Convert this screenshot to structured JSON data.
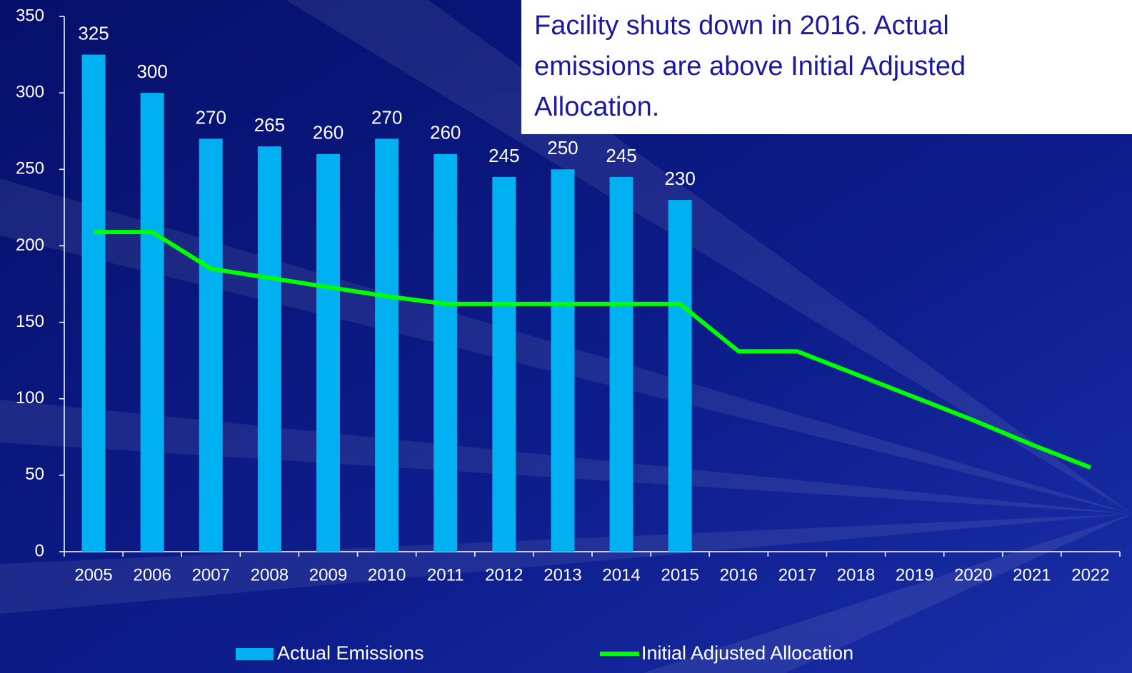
{
  "chart_data": {
    "type": "bar",
    "annotation": [
      "Facility shuts down in 2016.  Actual",
      "emissions are above Initial Adjusted",
      "Allocation."
    ],
    "categories": [
      "2005",
      "2006",
      "2007",
      "2008",
      "2009",
      "2010",
      "2011",
      "2012",
      "2013",
      "2014",
      "2015",
      "2016",
      "2017",
      "2018",
      "2019",
      "2020",
      "2021",
      "2022"
    ],
    "series": [
      {
        "name": "Actual Emissions",
        "type": "bar",
        "color": "#00b0f0",
        "values": [
          325,
          300,
          270,
          265,
          260,
          270,
          260,
          245,
          250,
          245,
          230,
          null,
          null,
          null,
          null,
          null,
          null,
          null
        ]
      },
      {
        "name": "Initial Adjusted Allocation",
        "type": "line",
        "color": "#00ff00",
        "values": [
          209,
          209,
          185,
          179,
          173,
          167,
          162,
          162,
          162,
          162,
          162,
          131,
          131,
          116,
          101,
          86,
          70,
          55
        ]
      }
    ],
    "ylim": [
      0,
      350
    ],
    "yticks": [
      0,
      50,
      100,
      150,
      200,
      250,
      300,
      350
    ],
    "data_labels": true,
    "legend": "bottom"
  }
}
